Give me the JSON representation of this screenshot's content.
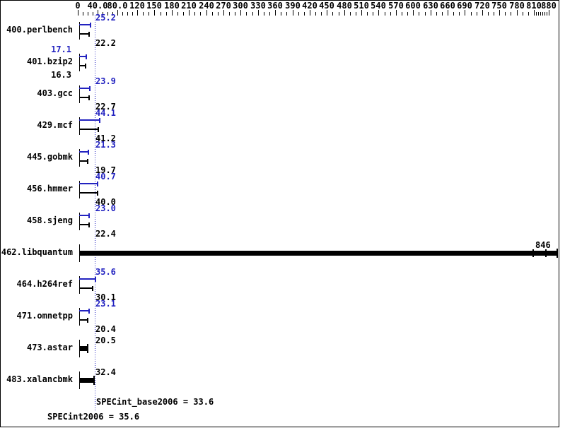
{
  "chart_data": {
    "type": "bar",
    "orientation": "horizontal",
    "x_axis": {
      "range": [
        0,
        880
      ],
      "minor_tick_step": 10,
      "ticks": [
        {
          "value": 0,
          "label": "0"
        },
        {
          "value": 40,
          "label": "40.0"
        },
        {
          "value": 80,
          "label": "80.0"
        },
        {
          "value": 120,
          "label": "120"
        },
        {
          "value": 150,
          "label": "150"
        },
        {
          "value": 180,
          "label": "180"
        },
        {
          "value": 210,
          "label": "210"
        },
        {
          "value": 240,
          "label": "240"
        },
        {
          "value": 270,
          "label": "270"
        },
        {
          "value": 300,
          "label": "300"
        },
        {
          "value": 330,
          "label": "330"
        },
        {
          "value": 360,
          "label": "360"
        },
        {
          "value": 390,
          "label": "390"
        },
        {
          "value": 420,
          "label": "420"
        },
        {
          "value": 450,
          "label": "450"
        },
        {
          "value": 480,
          "label": "480"
        },
        {
          "value": 510,
          "label": "510"
        },
        {
          "value": 540,
          "label": "540"
        },
        {
          "value": 570,
          "label": "570"
        },
        {
          "value": 600,
          "label": "600"
        },
        {
          "value": 630,
          "label": "630"
        },
        {
          "value": 660,
          "label": "660"
        },
        {
          "value": 690,
          "label": "690"
        },
        {
          "value": 720,
          "label": "720"
        },
        {
          "value": 750,
          "label": "750"
        },
        {
          "value": 780,
          "label": "780"
        },
        {
          "value": 810,
          "label": "810"
        },
        {
          "value": 880,
          "label": "880"
        }
      ]
    },
    "series": [
      {
        "name": "SPECint2006 (peak)",
        "color": "#2222c0"
      },
      {
        "name": "SPECint_base2006 (base)",
        "color": "#000000"
      }
    ],
    "benchmarks": [
      {
        "name": "400.perlbench",
        "peak": "25.2",
        "base": "22.2",
        "value_label_side": "right"
      },
      {
        "name": "401.bzip2",
        "peak": "17.1",
        "base": "16.3",
        "value_label_side": "left"
      },
      {
        "name": "403.gcc",
        "peak": "23.9",
        "base": "22.7",
        "value_label_side": "right"
      },
      {
        "name": "429.mcf",
        "peak": "44.1",
        "base": "41.2",
        "value_label_side": "right"
      },
      {
        "name": "445.gobmk",
        "peak": "21.3",
        "base": "19.7",
        "value_label_side": "right"
      },
      {
        "name": "456.hmmer",
        "peak": "40.7",
        "base": "40.0",
        "value_label_side": "right"
      },
      {
        "name": "458.sjeng",
        "peak": "23.0",
        "base": "22.4",
        "value_label_side": "right"
      },
      {
        "name": "462.libquantum",
        "single": "846",
        "overflow": true
      },
      {
        "name": "464.h264ref",
        "peak": "35.6",
        "base": "30.1",
        "value_label_side": "right"
      },
      {
        "name": "471.omnetpp",
        "peak": "23.1",
        "base": "20.4",
        "value_label_side": "right"
      },
      {
        "name": "473.astar",
        "single": "20.5"
      },
      {
        "name": "483.xalancbmk",
        "single": "32.4"
      }
    ],
    "reference_line": {
      "value": 33.6
    },
    "summary": {
      "base_text": "SPECint_base2006 = 33.6",
      "peak_text": "SPECint2006 = 35.6"
    },
    "colors": {
      "peak_blue": "#2222c0",
      "base_black": "#000000",
      "reference_line": "#2222c0"
    }
  }
}
